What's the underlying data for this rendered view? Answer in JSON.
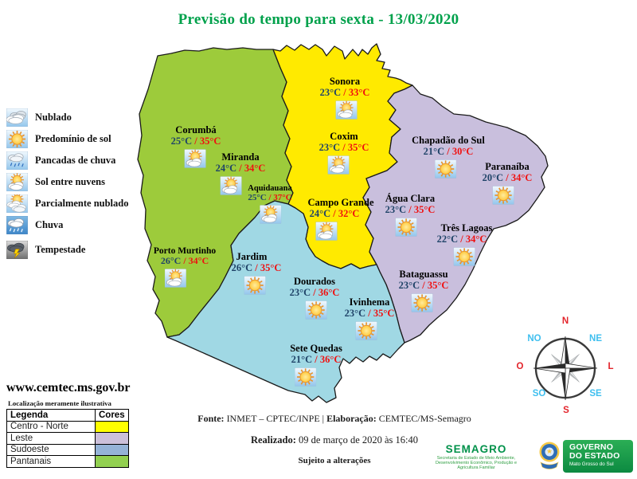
{
  "title": "Previsão do tempo para sexta - 13/03/2020",
  "colors": {
    "title": "#00A14B",
    "region_centro_norte": "#FFEA00",
    "region_leste": "#C9BFDD",
    "region_sudoeste": "#A0D8E4",
    "region_pantanais": "#9DCB3B",
    "temp_min": "#1F4368",
    "temp_max": "#F01010"
  },
  "weather_legend": [
    {
      "label": "Nublado",
      "icon": "nublado"
    },
    {
      "label": "Predomínio de sol",
      "icon": "sol"
    },
    {
      "label": "Pancadas de chuva",
      "icon": "pancadas"
    },
    {
      "label": "Sol entre nuvens",
      "icon": "solnuvens"
    },
    {
      "label": "Parcialmente nublado",
      "icon": "parcial"
    },
    {
      "label": "Chuva",
      "icon": "chuva"
    },
    {
      "label": "Tempestade",
      "icon": "tempestade"
    }
  ],
  "temp_separator": " / ",
  "cities": [
    {
      "name": "Sonora",
      "min": "23°C",
      "max": "33°C",
      "icon": "solnuvens"
    },
    {
      "name": "Coxim",
      "min": "23°C",
      "max": "35°C",
      "icon": "solnuvens"
    },
    {
      "name": "Corumbá",
      "min": "25°C",
      "max": "35°C",
      "icon": "solnuvens"
    },
    {
      "name": "Miranda",
      "min": "24°C",
      "max": "34°C",
      "icon": "solnuvens"
    },
    {
      "name": "Aquidauana",
      "min": "25°C",
      "max": "37°C",
      "icon": "solnuvens"
    },
    {
      "name": "Campo Grande",
      "min": "24°C",
      "max": "32°C",
      "icon": "solnuvens"
    },
    {
      "name": "Porto Murtinho",
      "min": "26°C",
      "max": "34°C",
      "icon": "solnuvens"
    },
    {
      "name": "Jardim",
      "min": "26°C",
      "max": "35°C",
      "icon": "sol"
    },
    {
      "name": "Dourados",
      "min": "23°C",
      "max": "36°C",
      "icon": "sol"
    },
    {
      "name": "Ivinhema",
      "min": "23°C",
      "max": "35°C",
      "icon": "sol"
    },
    {
      "name": "Sete Quedas",
      "min": "21°C",
      "max": "36°C",
      "icon": "sol"
    },
    {
      "name": "Chapadão do Sul",
      "min": "21°C",
      "max": "30°C",
      "icon": "sol"
    },
    {
      "name": "Paranaíba",
      "min": "20°C",
      "max": "34°C",
      "icon": "sol"
    },
    {
      "name": "Água Clara",
      "min": "23°C",
      "max": "35°C",
      "icon": "sol"
    },
    {
      "name": "Três Lagoas",
      "min": "22°C",
      "max": "34°C",
      "icon": "sol"
    },
    {
      "name": "Bataguassu",
      "min": "23°C",
      "max": "35°C",
      "icon": "sol"
    }
  ],
  "compass": {
    "n": "N",
    "ne": "NE",
    "l": "L",
    "se": "SE",
    "s": "S",
    "so": "SO",
    "o": "O",
    "no": "NO"
  },
  "sidebar_bottom": {
    "website": "www.cemtec.ms.gov.br",
    "note": "Localização meramente ilustrativa",
    "table": {
      "col_legend": "Legenda",
      "col_colors": "Cores",
      "rows": [
        {
          "label": "Centro - Norte",
          "color": "#FFFF00"
        },
        {
          "label": "Leste",
          "color": "#CCC0DA"
        },
        {
          "label": "Sudoeste",
          "color": "#95B3D7"
        },
        {
          "label": "Pantanais",
          "color": "#92D050"
        }
      ]
    }
  },
  "footer": {
    "fonte_label": "Fonte:",
    "fonte_text": " INMET – CPTEC/INPE | ",
    "elaboracao_label": "Elaboração:",
    "elaboracao_text": " CEMTEC/MS-Semagro",
    "realizado_label": "Realizado:",
    "realizado_text": " 09 de março de 2020 às 16:40",
    "disclaimer": "Sujeito a alterações"
  },
  "logos": {
    "semagro_title": "SEMAGRO",
    "semagro_subtitle": "Secretaria de Estado de Meio Ambiente, Desenvolvimento Econômico, Produção e Agricultura Familiar",
    "governo_line1": "GOVERNO",
    "governo_line2": "DO ESTADO",
    "governo_line3": "Mato Grosso do Sul"
  }
}
